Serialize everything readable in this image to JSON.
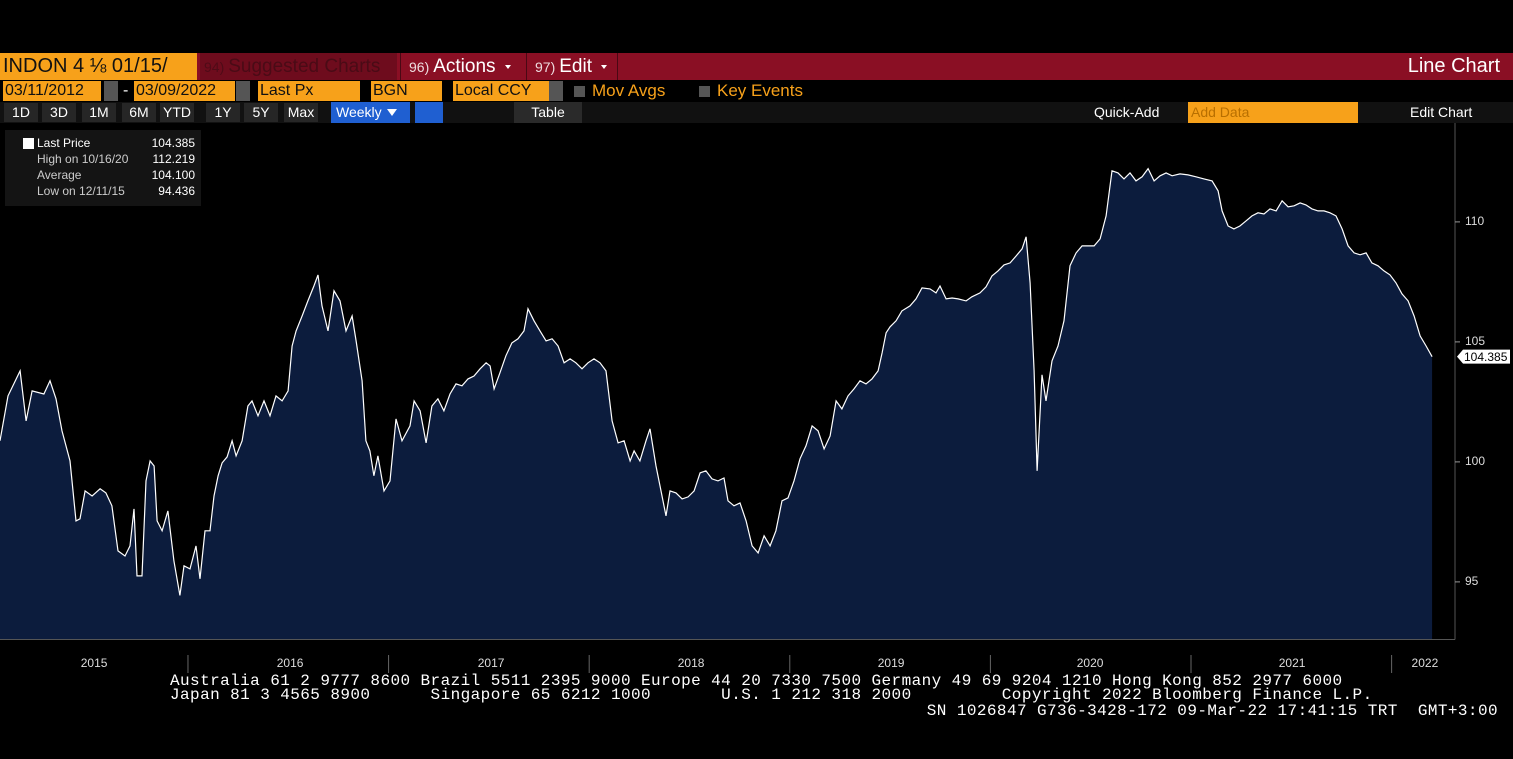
{
  "toolbar": {
    "ticker": "INDON 4 ⅛ 01/15/",
    "menus": [
      {
        "key": "94)",
        "label": "Suggested Charts"
      },
      {
        "key": "96)",
        "label": "Actions"
      },
      {
        "key": "97)",
        "label": "Edit"
      }
    ],
    "view": "Line Chart"
  },
  "settings": {
    "start_date": "03/11/2012",
    "separator": "-",
    "end_date": "03/09/2022",
    "field": "Last Px",
    "source": "BGN",
    "currency": "Local CCY",
    "options": [
      "Mov Avgs",
      "Key Events"
    ]
  },
  "controls": {
    "periods": [
      "1D",
      "3D",
      "1M",
      "6M",
      "YTD",
      "1Y",
      "5Y",
      "Max"
    ],
    "frequency": "Weekly",
    "table": "Table",
    "quick_add": "Quick-Add",
    "add_data": "Add Data",
    "edit_chart": "Edit Chart"
  },
  "legend": [
    {
      "label": "Last Price",
      "value": "104.385"
    },
    {
      "label": "High on 10/16/20",
      "value": "112.219"
    },
    {
      "label": "Average",
      "value": "104.100"
    },
    {
      "label": "Low on 12/11/15",
      "value": "94.436"
    }
  ],
  "chart_data": {
    "type": "area",
    "ylim": [
      92.6,
      114.1
    ],
    "yticks": [
      95,
      100,
      105,
      110
    ],
    "xlim": [
      2015.063,
      2022.316
    ],
    "xticks": [
      {
        "value": 2015.532,
        "label": "2015"
      },
      {
        "value": 2016.509,
        "label": "2016"
      },
      {
        "value": 2017.511,
        "label": "2017"
      },
      {
        "value": 2018.508,
        "label": "2018"
      },
      {
        "value": 2019.505,
        "label": "2019"
      },
      {
        "value": 2020.497,
        "label": "2020"
      },
      {
        "value": 2021.504,
        "label": "2021"
      },
      {
        "value": 2022.166,
        "label": "2022"
      }
    ],
    "xticks_minor": [
      2016,
      2017,
      2018,
      2019,
      2020,
      2021,
      2022
    ],
    "series": [
      {
        "color": "#ffffff",
        "fill": "#0c1c3d",
        "x": [
          2015.063,
          2015.103,
          2015.163,
          2015.193,
          2015.223,
          2015.282,
          2015.312,
          2015.342,
          2015.372,
          2015.412,
          2015.442,
          2015.462,
          2015.487,
          2015.522,
          2015.562,
          2015.591,
          2015.621,
          2015.651,
          2015.686,
          2015.711,
          2015.731,
          2015.746,
          2015.771,
          2015.791,
          2015.811,
          2015.831,
          2015.846,
          2015.871,
          2015.9,
          2015.93,
          2015.96,
          2015.98,
          2016.01,
          2016.04,
          2016.06,
          2016.085,
          2016.11,
          2016.13,
          2016.15,
          2016.17,
          2016.195,
          2016.22,
          2016.24,
          2016.27,
          2016.299,
          2016.319,
          2016.349,
          2016.379,
          2016.409,
          2016.439,
          2016.469,
          2016.499,
          2016.519,
          2016.539,
          2016.569,
          2016.598,
          2016.628,
          2016.648,
          2016.668,
          2016.698,
          2016.728,
          2016.758,
          2016.788,
          2016.818,
          2016.838,
          2016.868,
          2016.887,
          2016.907,
          2016.927,
          2016.947,
          2016.977,
          2017.007,
          2017.037,
          2017.067,
          2017.107,
          2017.127,
          2017.157,
          2017.187,
          2017.216,
          2017.246,
          2017.276,
          2017.306,
          2017.336,
          2017.366,
          2017.396,
          2017.426,
          2017.456,
          2017.486,
          2017.506,
          2017.526,
          2017.555,
          2017.585,
          2017.615,
          2017.645,
          2017.675,
          2017.695,
          2017.725,
          2017.755,
          2017.785,
          2017.815,
          2017.845,
          2017.875,
          2017.905,
          2017.934,
          2017.964,
          2017.994,
          2018.024,
          2018.054,
          2018.084,
          2018.114,
          2018.144,
          2018.174,
          2018.204,
          2018.224,
          2018.253,
          2018.283,
          2018.303,
          2018.333,
          2018.353,
          2018.383,
          2018.403,
          2018.433,
          2018.463,
          2018.493,
          2018.523,
          2018.553,
          2018.582,
          2018.612,
          2018.642,
          2018.672,
          2018.692,
          2018.722,
          2018.752,
          2018.782,
          2018.812,
          2018.842,
          2018.872,
          2018.902,
          2018.931,
          2018.961,
          2018.991,
          2019.021,
          2019.051,
          2019.081,
          2019.111,
          2019.141,
          2019.171,
          2019.201,
          2019.231,
          2019.26,
          2019.29,
          2019.32,
          2019.35,
          2019.38,
          2019.41,
          2019.44,
          2019.46,
          2019.48,
          2019.5,
          2019.53,
          2019.559,
          2019.599,
          2019.629,
          2019.659,
          2019.699,
          2019.729,
          2019.749,
          2019.779,
          2019.809,
          2019.839,
          2019.879,
          2019.908,
          2019.948,
          2019.978,
          2020.008,
          2020.038,
          2020.068,
          2020.098,
          2020.128,
          2020.158,
          2020.178,
          2020.198,
          2020.218,
          2020.233,
          2020.257,
          2020.277,
          2020.307,
          2020.337,
          2020.367,
          2020.397,
          2020.427,
          2020.457,
          2020.517,
          2020.547,
          2020.577,
          2020.606,
          2020.636,
          2020.666,
          2020.696,
          2020.726,
          2020.756,
          2020.786,
          2020.816,
          2020.846,
          2020.876,
          2020.906,
          2020.945,
          2020.985,
          2021.025,
          2021.065,
          2021.105,
          2021.135,
          2021.155,
          2021.185,
          2021.214,
          2021.244,
          2021.274,
          2021.304,
          2021.334,
          2021.364,
          2021.394,
          2021.424,
          2021.454,
          2021.484,
          2021.514,
          2021.544,
          2021.573,
          2021.603,
          2021.633,
          2021.663,
          2021.693,
          2021.723,
          2021.753,
          2021.783,
          2021.813,
          2021.843,
          2021.873,
          2021.902,
          2021.932,
          2021.962,
          2021.992,
          2022.022,
          2022.052,
          2022.082,
          2022.112,
          2022.142,
          2022.172,
          2022.202
        ],
        "values": [
          100.88,
          102.75,
          103.79,
          101.71,
          102.96,
          102.83,
          103.38,
          102.63,
          101.29,
          100.04,
          97.54,
          97.63,
          98.79,
          98.58,
          98.88,
          98.71,
          98.17,
          96.29,
          96.08,
          96.5,
          98.04,
          95.25,
          95.25,
          99.21,
          100.04,
          99.83,
          97.54,
          97.13,
          97.96,
          95.88,
          94.436,
          95.67,
          95.54,
          96.5,
          95.13,
          97.13,
          97.13,
          98.58,
          99.42,
          99.96,
          100.21,
          100.88,
          100.25,
          100.88,
          102.33,
          102.54,
          101.92,
          102.54,
          101.92,
          102.75,
          102.54,
          102.96,
          104.83,
          105.46,
          106.08,
          106.71,
          107.33,
          107.79,
          106.5,
          105.46,
          107.13,
          106.71,
          105.46,
          106.08,
          105.04,
          103.38,
          100.88,
          100.46,
          99.42,
          100.25,
          98.79,
          99.21,
          101.79,
          100.88,
          101.5,
          102.54,
          102.13,
          100.79,
          102.33,
          102.63,
          102.13,
          102.83,
          103.25,
          103.17,
          103.46,
          103.58,
          103.88,
          104.13,
          104.0,
          103.04,
          103.71,
          104.42,
          104.96,
          105.13,
          105.46,
          106.38,
          105.88,
          105.46,
          105.04,
          105.13,
          104.83,
          104.13,
          104.29,
          104.13,
          103.88,
          104.13,
          104.29,
          104.13,
          103.79,
          101.71,
          100.79,
          100.88,
          100.04,
          100.46,
          100.04,
          100.88,
          101.38,
          99.83,
          99.0,
          97.75,
          98.79,
          98.71,
          98.46,
          98.54,
          98.79,
          99.54,
          99.63,
          99.29,
          99.21,
          99.33,
          98.38,
          98.17,
          98.29,
          97.54,
          96.5,
          96.21,
          96.92,
          96.5,
          97.13,
          98.38,
          98.5,
          99.21,
          100.13,
          100.67,
          101.5,
          101.29,
          100.54,
          101.08,
          102.54,
          102.21,
          102.75,
          103.04,
          103.38,
          103.25,
          103.46,
          103.79,
          104.54,
          105.38,
          105.63,
          105.88,
          106.29,
          106.5,
          106.79,
          107.25,
          107.21,
          107.04,
          107.33,
          106.79,
          106.83,
          106.79,
          106.71,
          106.88,
          107.04,
          107.29,
          107.75,
          107.96,
          108.21,
          108.29,
          108.58,
          108.88,
          109.38,
          107.46,
          103.79,
          99.63,
          103.63,
          102.54,
          104.21,
          104.83,
          105.88,
          108.17,
          108.71,
          109.0,
          109.0,
          109.29,
          110.25,
          112.13,
          112.04,
          111.79,
          112.04,
          111.71,
          111.88,
          112.219,
          111.71,
          111.92,
          112.04,
          111.92,
          112.0,
          111.96,
          111.88,
          111.79,
          111.71,
          111.29,
          110.46,
          109.83,
          109.71,
          109.83,
          110.04,
          110.25,
          110.38,
          110.33,
          110.54,
          110.46,
          110.88,
          110.63,
          110.67,
          110.79,
          110.71,
          110.54,
          110.46,
          110.46,
          110.38,
          110.25,
          109.71,
          109.0,
          108.71,
          108.63,
          108.71,
          108.29,
          108.17,
          107.96,
          107.79,
          107.46,
          107.0,
          106.71,
          106.08,
          105.25,
          104.83,
          104.385
        ]
      }
    ]
  },
  "footer": [
    "Australia 61 2 9777 8600 Brazil 5511 2395 9000 Europe 44 20 7330 7500 Germany 49 69 9204 1210 Hong Kong 852 2977 6000",
    "Japan 81 3 4565 8900      Singapore 65 6212 1000       U.S. 1 212 318 2000         Copyright 2022 Bloomberg Finance L.P.",
    "SN 1026847 G736-3428-172 09-Mar-22 17:41:15 TRT  GMT+3:00"
  ]
}
